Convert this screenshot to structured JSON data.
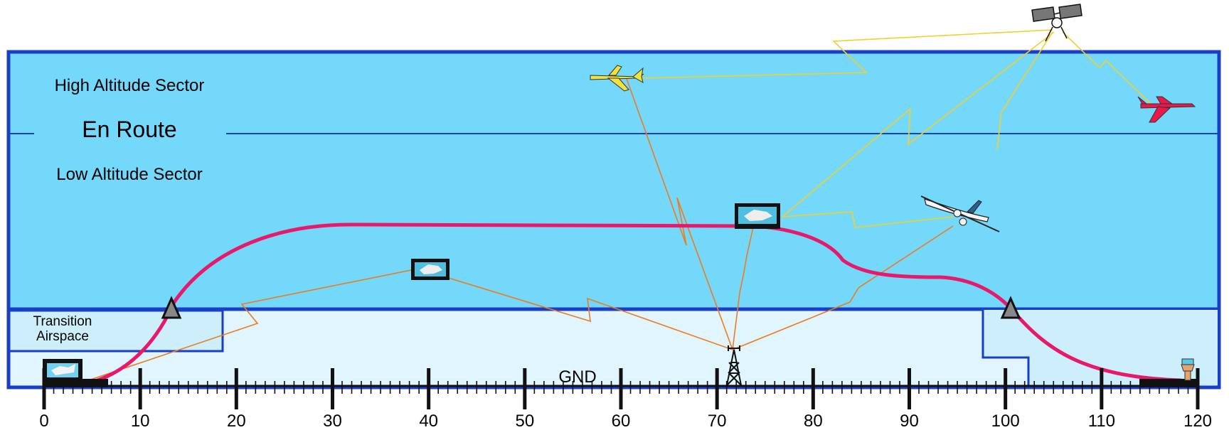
{
  "sector_labels": {
    "high": "High Altitude Sector",
    "en_route": "En Route",
    "low": "Low Altitude Sector",
    "transition_line1": "Transition",
    "transition_line2": "Airspace",
    "ground": "GND"
  },
  "axis": {
    "min": 0,
    "max": 120,
    "major_labels": [
      "0",
      "10",
      "20",
      "30",
      "40",
      "50",
      "60",
      "70",
      "80",
      "90",
      "100",
      "110",
      "120"
    ]
  },
  "colors": {
    "sky": "#74d8fb",
    "transition": "#e0f5fd",
    "terminal": "#cdeefb",
    "border": "#1a3fc4",
    "flight_path": "#e8196a",
    "radio_orange": "#f07a1e",
    "radio_yellow": "#f2cf2a"
  },
  "icons": {
    "departure_airport": "airport-icon",
    "satellite": "satellite-icon",
    "radio_tower": "radio-tower-icon",
    "control_tower": "control-tower-icon",
    "yellow_jet": "yellow-jet-icon",
    "red_jet": "red-jet-icon",
    "turboprop": "turboprop-icon",
    "waypoint": "waypoint-triangle-icon",
    "atc_station": "atc-station-icon"
  }
}
